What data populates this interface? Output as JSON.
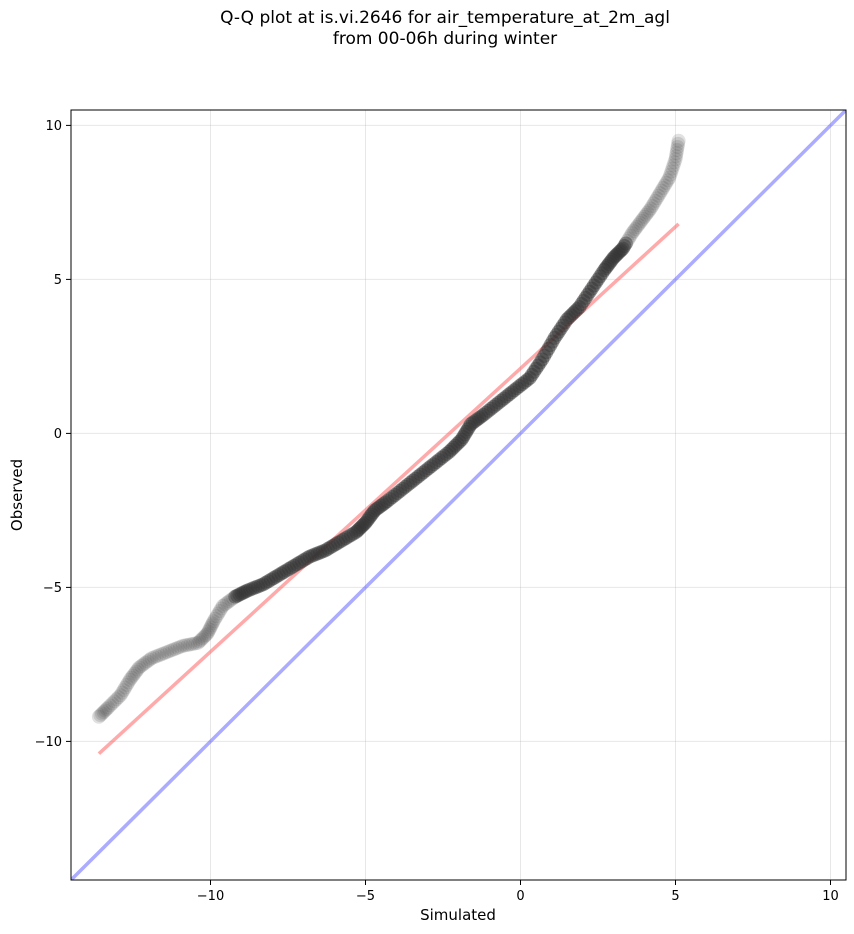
{
  "chart_data": {
    "type": "scatter",
    "title": [
      "Q-Q plot at is.vi.2646 for air_temperature_at_2m_agl",
      "from 00-06h during winter"
    ],
    "xlabel": "Simulated",
    "ylabel": "Observed",
    "xlim": [
      -14.5,
      10.5
    ],
    "ylim": [
      -14.5,
      10.5
    ],
    "xticks": [
      -10,
      -5,
      0,
      5,
      10
    ],
    "yticks": [
      -10,
      -5,
      0,
      5,
      10
    ],
    "xtick_labels": [
      "−10",
      "−5",
      "0",
      "5",
      "10"
    ],
    "ytick_labels": [
      "−10",
      "−5",
      "0",
      "5",
      "10"
    ],
    "grid": true,
    "quantile_curve": {
      "x": [
        -13.6,
        -13.3,
        -12.9,
        -12.6,
        -12.3,
        -11.9,
        -11.4,
        -10.9,
        -10.4,
        -10.1,
        -9.9,
        -9.6,
        -9.2,
        -8.8,
        -8.3,
        -7.8,
        -7.3,
        -6.8,
        -6.3,
        -5.8,
        -5.3,
        -5.0,
        -4.7,
        -4.3,
        -3.8,
        -3.3,
        -2.8,
        -2.3,
        -1.9,
        -1.6,
        -1.2,
        -0.7,
        -0.2,
        0.3,
        0.7,
        1.1,
        1.5,
        1.9,
        2.3,
        2.7,
        3.0,
        3.3,
        3.6,
        3.9,
        4.2,
        4.5,
        4.8,
        5.0,
        5.1
      ],
      "y": [
        -9.2,
        -8.9,
        -8.5,
        -8.0,
        -7.6,
        -7.3,
        -7.1,
        -6.9,
        -6.8,
        -6.5,
        -6.1,
        -5.6,
        -5.3,
        -5.1,
        -4.9,
        -4.6,
        -4.3,
        -4.0,
        -3.8,
        -3.5,
        -3.2,
        -2.9,
        -2.5,
        -2.2,
        -1.8,
        -1.4,
        -1.0,
        -0.6,
        -0.2,
        0.3,
        0.6,
        1.0,
        1.4,
        1.8,
        2.4,
        3.1,
        3.7,
        4.1,
        4.7,
        5.3,
        5.7,
        6.0,
        6.5,
        6.9,
        7.3,
        7.8,
        8.3,
        8.9,
        9.5
      ],
      "color": "#333333",
      "opacity_tails": 0.15,
      "opacity_center": 0.45
    },
    "fit_line": {
      "x": [
        -13.6,
        5.1
      ],
      "y": [
        -10.4,
        6.8
      ],
      "color": "#ff5555"
    },
    "identity_line": {
      "x": [
        -14.5,
        10.5
      ],
      "y": [
        -14.5,
        10.5
      ],
      "color": "#6666ff"
    }
  }
}
